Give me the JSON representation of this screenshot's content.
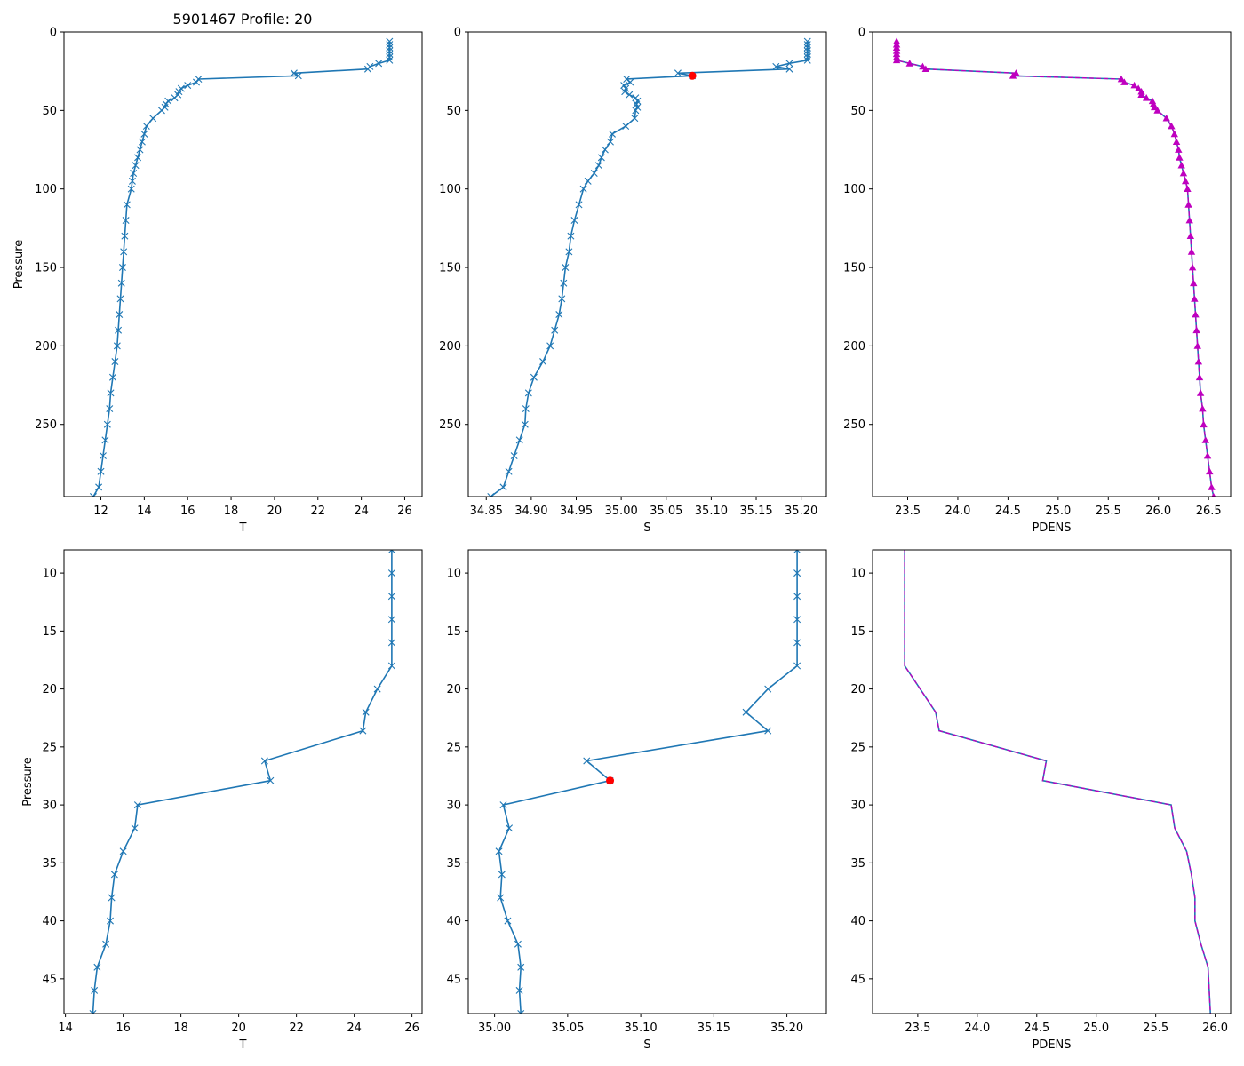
{
  "figure": {
    "suptitle": "5901467 Profile: 20",
    "line_color": "#1f77b4",
    "pdens_color": "#bf00bf",
    "highlight_color": "#ff0000"
  },
  "profile": {
    "pressure": [
      6,
      8,
      10,
      12,
      14,
      16,
      18,
      20,
      22,
      23.6,
      26.2,
      27.9,
      30,
      32,
      34,
      36,
      38,
      40,
      42,
      44,
      46,
      48,
      50,
      55,
      60,
      65,
      70,
      75,
      80,
      85,
      90,
      95,
      100,
      110,
      120,
      130,
      140,
      150,
      160,
      170,
      180,
      190,
      200,
      210,
      220,
      230,
      240,
      250,
      260,
      270,
      280,
      290,
      296
    ],
    "T": [
      25.3,
      25.3,
      25.3,
      25.3,
      25.3,
      25.3,
      25.3,
      24.8,
      24.4,
      24.3,
      20.9,
      21.1,
      16.5,
      16.4,
      16.0,
      15.7,
      15.6,
      15.55,
      15.4,
      15.1,
      15.0,
      14.95,
      14.8,
      14.4,
      14.1,
      14.0,
      13.9,
      13.8,
      13.7,
      13.6,
      13.5,
      13.45,
      13.4,
      13.2,
      13.15,
      13.1,
      13.05,
      13.0,
      12.95,
      12.9,
      12.85,
      12.8,
      12.75,
      12.65,
      12.55,
      12.45,
      12.4,
      12.3,
      12.2,
      12.1,
      12.0,
      11.9,
      11.65
    ],
    "S": [
      35.207,
      35.207,
      35.207,
      35.207,
      35.207,
      35.207,
      35.207,
      35.187,
      35.172,
      35.187,
      35.063,
      35.079,
      35.006,
      35.01,
      35.003,
      35.005,
      35.004,
      35.009,
      35.016,
      35.018,
      35.017,
      35.018,
      35.016,
      35.015,
      35.005,
      34.99,
      34.988,
      34.982,
      34.978,
      34.975,
      34.97,
      34.963,
      34.958,
      34.953,
      34.948,
      34.944,
      34.942,
      34.938,
      34.936,
      34.934,
      34.931,
      34.926,
      34.921,
      34.913,
      34.903,
      34.897,
      34.894,
      34.893,
      34.887,
      34.881,
      34.875,
      34.869,
      34.855
    ],
    "PDENS": [
      23.39,
      23.39,
      23.39,
      23.39,
      23.39,
      23.39,
      23.39,
      23.52,
      23.65,
      23.68,
      24.58,
      24.55,
      25.63,
      25.66,
      25.76,
      25.8,
      25.83,
      25.83,
      25.88,
      25.94,
      25.95,
      25.96,
      25.99,
      26.08,
      26.13,
      26.16,
      26.18,
      26.2,
      26.21,
      26.23,
      26.25,
      26.27,
      26.29,
      26.3,
      26.31,
      26.32,
      26.33,
      26.34,
      26.35,
      26.36,
      26.37,
      26.38,
      26.39,
      26.4,
      26.41,
      26.42,
      26.44,
      26.45,
      26.47,
      26.49,
      26.51,
      26.53,
      26.55
    ]
  },
  "highlight": {
    "pressure": 27.9,
    "S": 35.079
  },
  "chart_data": [
    {
      "type": "line",
      "panel": "top-left",
      "title": "5901467 Profile: 20",
      "xlabel": "T",
      "ylabel": "Pressure",
      "x_field": "T",
      "markers": "x",
      "xlim": [
        10.3,
        26.8
      ],
      "ylim": [
        296,
        0
      ],
      "xticks": [
        12,
        14,
        16,
        18,
        20,
        22,
        24,
        26
      ],
      "yticks": [
        0,
        50,
        100,
        150,
        200,
        250
      ]
    },
    {
      "type": "line",
      "panel": "top-middle",
      "title": "",
      "xlabel": "S",
      "ylabel": "",
      "x_field": "S",
      "markers": "x",
      "xlim": [
        34.83,
        35.228
      ],
      "ylim": [
        296,
        0
      ],
      "xticks": [
        34.85,
        34.9,
        34.95,
        35.0,
        35.05,
        35.1,
        35.15,
        35.2
      ],
      "xtick_labels": [
        "34.85",
        "34.90",
        "34.95",
        "35.00",
        "35.05",
        "35.10",
        "35.15",
        "35.20"
      ],
      "yticks": [
        0,
        50,
        100,
        150,
        200,
        250
      ],
      "highlight_point": true
    },
    {
      "type": "line",
      "panel": "top-right",
      "title": "",
      "xlabel": "PDENS",
      "ylabel": "",
      "x_field": "PDENS",
      "markers": "triangle",
      "dashed_overlay": true,
      "xlim": [
        23.15,
        26.72
      ],
      "ylim": [
        296,
        0
      ],
      "xticks": [
        23.5,
        24.0,
        24.5,
        25.0,
        25.5,
        26.0,
        26.5
      ],
      "xtick_labels": [
        "23.5",
        "24.0",
        "24.5",
        "25.0",
        "25.5",
        "26.0",
        "26.5"
      ],
      "yticks": [
        0,
        50,
        100,
        150,
        200,
        250
      ]
    },
    {
      "type": "line",
      "panel": "bottom-left",
      "title": "",
      "xlabel": "T",
      "ylabel": "Pressure",
      "x_field": "T",
      "markers": "x",
      "xlim": [
        13.95,
        26.35
      ],
      "ylim": [
        48,
        8
      ],
      "xticks": [
        14,
        16,
        18,
        20,
        22,
        24,
        26
      ],
      "yticks": [
        10,
        15,
        20,
        25,
        30,
        35,
        40,
        45
      ]
    },
    {
      "type": "line",
      "panel": "bottom-middle",
      "title": "",
      "xlabel": "S",
      "ylabel": "",
      "x_field": "S",
      "markers": "x",
      "xlim": [
        34.982,
        35.227
      ],
      "ylim": [
        48,
        8
      ],
      "xticks": [
        35.0,
        35.05,
        35.1,
        35.15,
        35.2
      ],
      "xtick_labels": [
        "35.00",
        "35.05",
        "35.10",
        "35.15",
        "35.20"
      ],
      "yticks": [
        10,
        15,
        20,
        25,
        30,
        35,
        40,
        45
      ],
      "highlight_point": true
    },
    {
      "type": "line",
      "panel": "bottom-right",
      "title": "",
      "xlabel": "PDENS",
      "ylabel": "",
      "x_field": "PDENS",
      "markers": "none",
      "dashed_overlay": true,
      "xlim": [
        23.12,
        26.13
      ],
      "ylim": [
        48,
        8
      ],
      "xticks": [
        23.5,
        24.0,
        24.5,
        25.0,
        25.5,
        26.0
      ],
      "xtick_labels": [
        "23.5",
        "24.0",
        "24.5",
        "25.0",
        "25.5",
        "26.0"
      ],
      "yticks": [
        10,
        15,
        20,
        25,
        30,
        35,
        40,
        45
      ]
    }
  ]
}
